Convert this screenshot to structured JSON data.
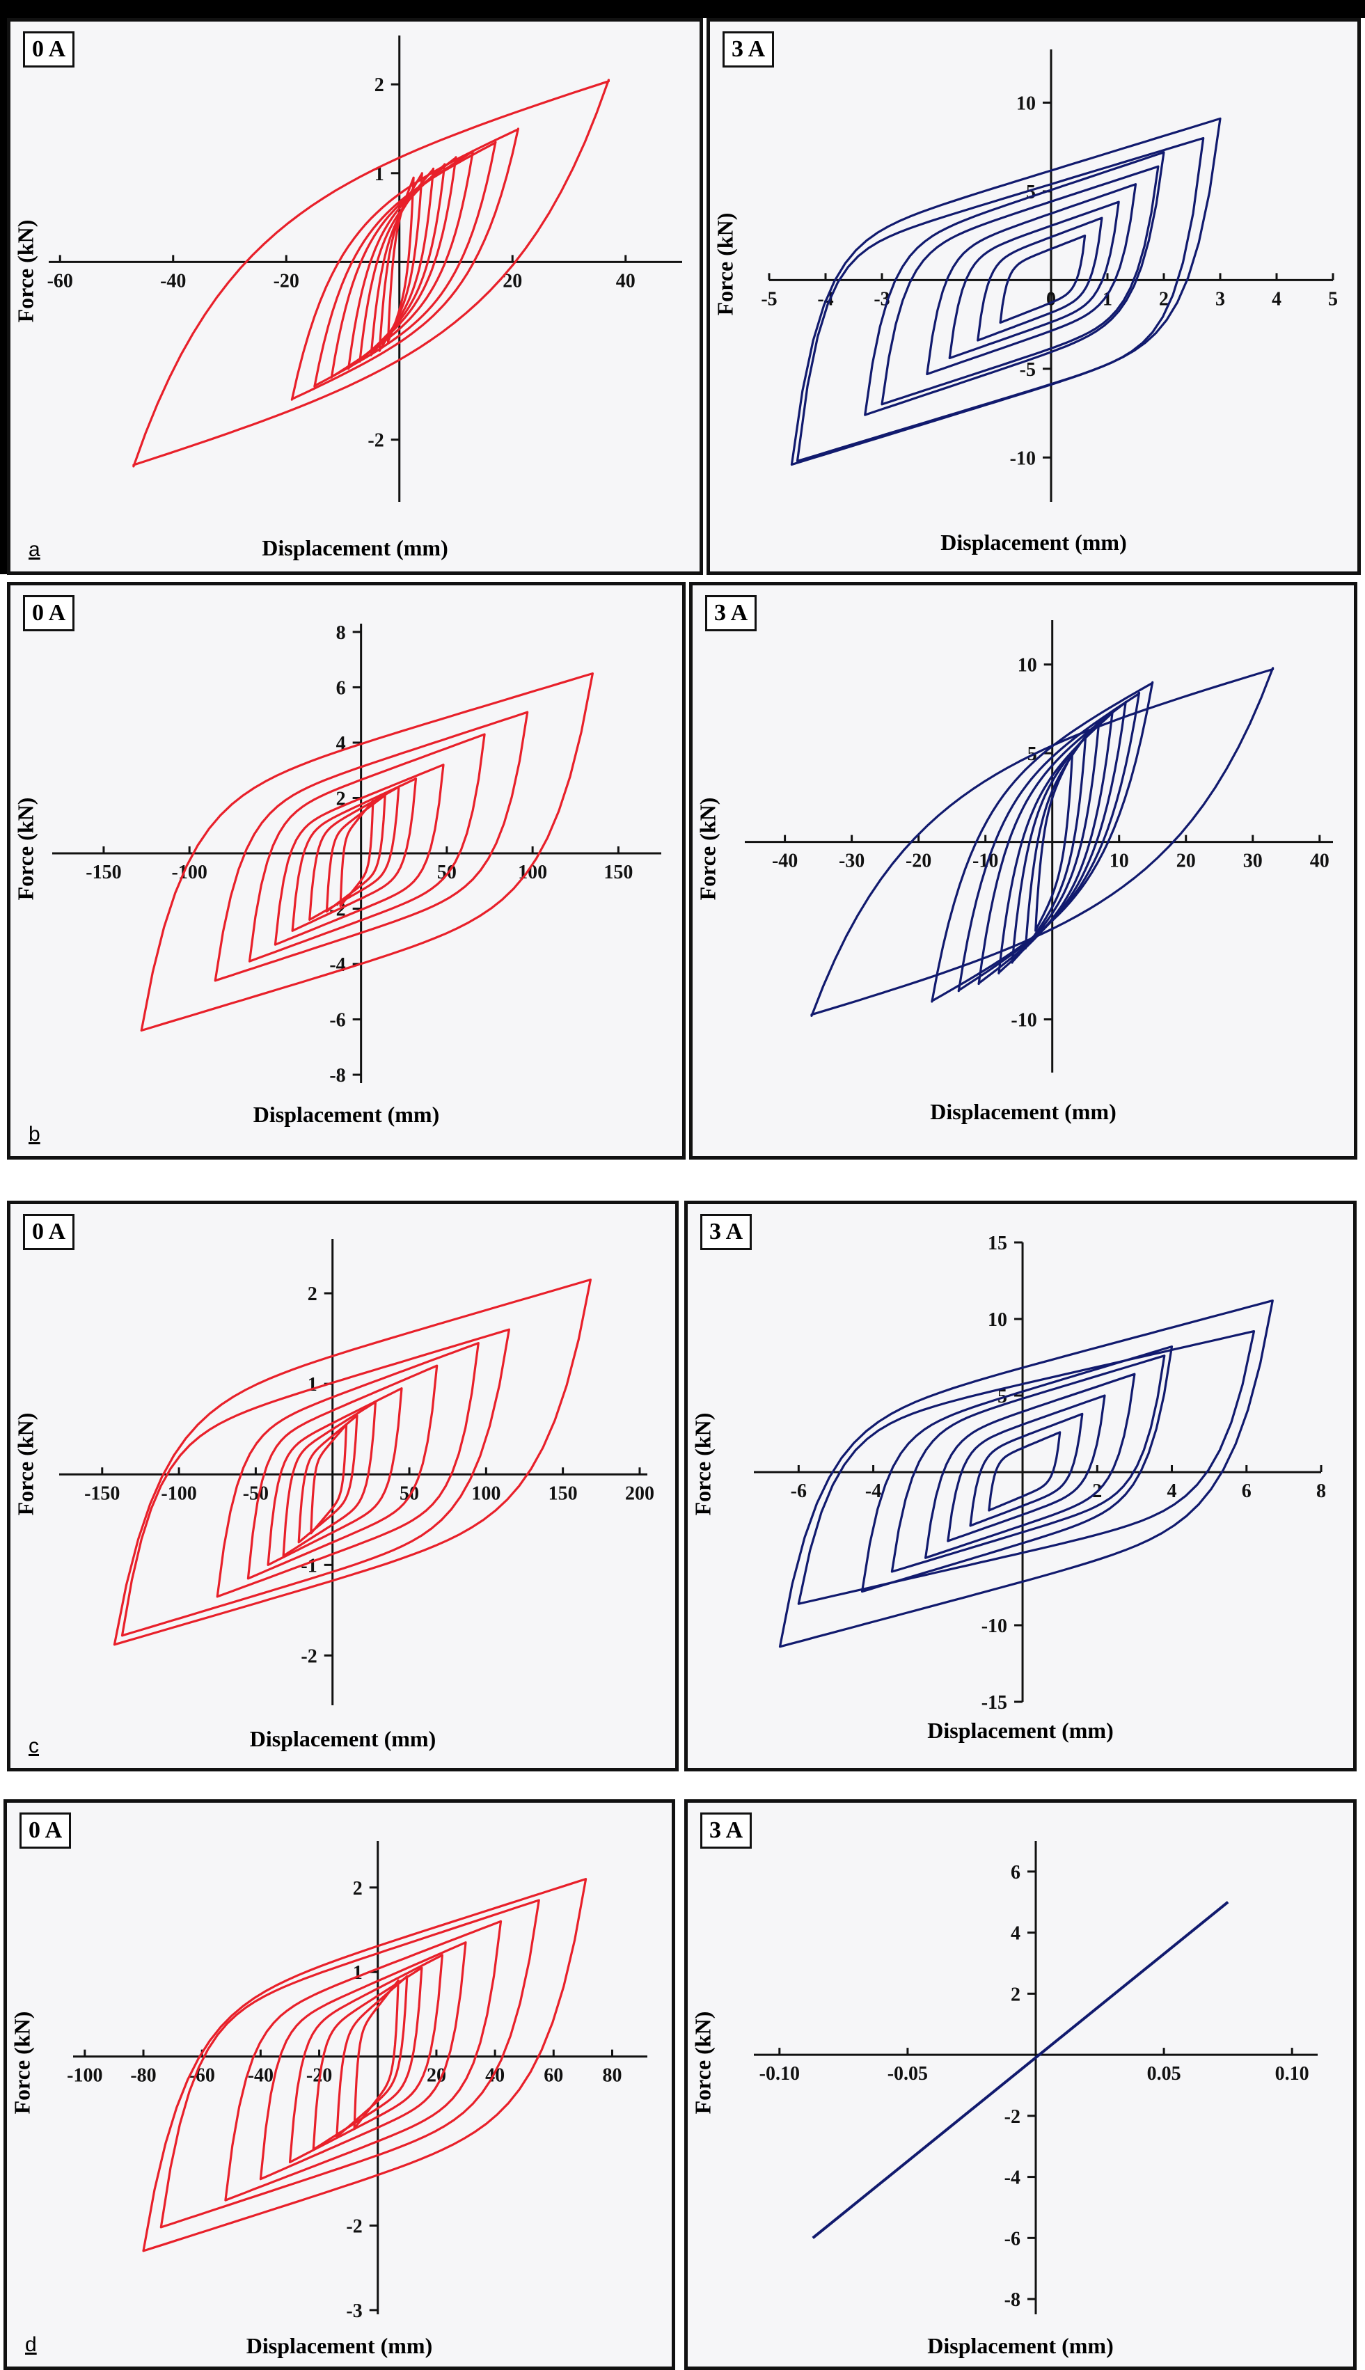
{
  "figure": {
    "rows": [
      {
        "label": "a"
      },
      {
        "label": "b"
      },
      {
        "label": "c"
      },
      {
        "label": "d"
      }
    ]
  },
  "colors": {
    "zeroA": "#e8202a",
    "threeA": "#111a6e",
    "axis": "#111111"
  },
  "chart_data": [
    {
      "id": "a0",
      "type": "line",
      "title": "0 A",
      "xlabel": "Displacement (mm)",
      "ylabel": "Force (kN)",
      "xlim": [
        -62,
        50
      ],
      "ylim": [
        -2.7,
        2.55
      ],
      "xticks": [
        -60,
        -40,
        -20,
        20,
        40
      ],
      "yticks": [
        -2,
        1,
        2
      ],
      "loops": [
        {
          "xmin": -47,
          "xmax": 37,
          "ymin": -2.3,
          "ymax": 2.05,
          "f": 0.55
        },
        {
          "xmin": -19,
          "xmax": 21,
          "ymin": -1.55,
          "ymax": 1.5,
          "f": 0.5
        },
        {
          "xmin": -15,
          "xmax": 17,
          "ymin": -1.4,
          "ymax": 1.35,
          "f": 0.5
        },
        {
          "xmin": -12,
          "xmax": 13,
          "ymin": -1.3,
          "ymax": 1.25,
          "f": 0.5
        },
        {
          "xmin": -9,
          "xmax": 10,
          "ymin": -1.2,
          "ymax": 1.18,
          "f": 0.5
        },
        {
          "xmin": -7,
          "xmax": 8,
          "ymin": -1.12,
          "ymax": 1.1,
          "f": 0.5
        },
        {
          "xmin": -5,
          "xmax": 6,
          "ymin": -1.05,
          "ymax": 1.05,
          "f": 0.5
        },
        {
          "xmin": -3.5,
          "xmax": 4,
          "ymin": -1.0,
          "ymax": 1.0,
          "f": 0.5
        },
        {
          "xmin": -2,
          "xmax": 2.5,
          "ymin": -0.9,
          "ymax": 0.95,
          "f": 0.5
        }
      ]
    },
    {
      "id": "a3",
      "type": "line",
      "title": "3 A",
      "xlabel": "Displacement (mm)",
      "ylabel": "Force (kN)",
      "xlim": [
        -5,
        5
      ],
      "ylim": [
        -12.5,
        13
      ],
      "xticks": [
        -5,
        -4,
        -3,
        0,
        1,
        2,
        3,
        4,
        5
      ],
      "yticks": [
        -10,
        -5,
        5,
        10
      ],
      "loops": [
        {
          "xmin": -4.6,
          "xmax": 3.0,
          "ymin": -10.4,
          "ymax": 9.1,
          "f": 0.18
        },
        {
          "xmin": -4.5,
          "xmax": 2.7,
          "ymin": -10.2,
          "ymax": 8.0,
          "f": 0.16
        },
        {
          "xmin": -3.3,
          "xmax": 2.0,
          "ymin": -7.6,
          "ymax": 7.2,
          "f": 0.2
        },
        {
          "xmin": -3.0,
          "xmax": 1.9,
          "ymin": -7.0,
          "ymax": 6.4,
          "f": 0.2
        },
        {
          "xmin": -2.2,
          "xmax": 1.5,
          "ymin": -5.3,
          "ymax": 5.4,
          "f": 0.2
        },
        {
          "xmin": -1.8,
          "xmax": 1.2,
          "ymin": -4.4,
          "ymax": 4.4,
          "f": 0.2
        },
        {
          "xmin": -1.3,
          "xmax": 0.9,
          "ymin": -3.4,
          "ymax": 3.5,
          "f": 0.2
        },
        {
          "xmin": -0.9,
          "xmax": 0.6,
          "ymin": -2.4,
          "ymax": 2.5,
          "f": 0.2
        }
      ]
    },
    {
      "id": "b0",
      "type": "line",
      "title": "0 A",
      "xlabel": "Displacement (mm)",
      "ylabel": "Force (kN)",
      "xlim": [
        -180,
        175
      ],
      "ylim": [
        -8.3,
        8.3
      ],
      "xticks": [
        -150,
        -100,
        50,
        100,
        150
      ],
      "yticks": [
        -8,
        -6,
        -4,
        -2,
        2,
        4,
        6,
        8
      ],
      "loops": [
        {
          "xmin": -128,
          "xmax": 135,
          "ymin": -6.4,
          "ymax": 6.5,
          "f": 0.25
        },
        {
          "xmin": -85,
          "xmax": 97,
          "ymin": -4.6,
          "ymax": 5.1,
          "f": 0.22
        },
        {
          "xmin": -65,
          "xmax": 72,
          "ymin": -3.9,
          "ymax": 4.3,
          "f": 0.2
        },
        {
          "xmin": -50,
          "xmax": 48,
          "ymin": -3.3,
          "ymax": 3.2,
          "f": 0.18
        },
        {
          "xmin": -40,
          "xmax": 32,
          "ymin": -2.8,
          "ymax": 2.7,
          "f": 0.18
        },
        {
          "xmin": -30,
          "xmax": 22,
          "ymin": -2.4,
          "ymax": 2.4,
          "f": 0.18
        },
        {
          "xmin": -20,
          "xmax": 14,
          "ymin": -2.1,
          "ymax": 2.1,
          "f": 0.18
        },
        {
          "xmin": -12,
          "xmax": 7,
          "ymin": -1.9,
          "ymax": 1.9,
          "f": 0.2
        }
      ]
    },
    {
      "id": "b3",
      "type": "line",
      "title": "3 A",
      "xlabel": "Displacement (mm)",
      "ylabel": "Force (kN)",
      "xlim": [
        -46,
        42
      ],
      "ylim": [
        -13,
        12.5
      ],
      "xticks": [
        -40,
        -30,
        -20,
        -10,
        10,
        20,
        30,
        40
      ],
      "yticks": [
        -10,
        5,
        10
      ],
      "loops": [
        {
          "xmin": -36,
          "xmax": 33,
          "ymin": -9.8,
          "ymax": 9.8,
          "f": 0.55
        },
        {
          "xmin": -18,
          "xmax": 15,
          "ymin": -9.0,
          "ymax": 9.0,
          "f": 0.5
        },
        {
          "xmin": -14,
          "xmax": 13,
          "ymin": -8.4,
          "ymax": 8.4,
          "f": 0.5
        },
        {
          "xmin": -11,
          "xmax": 11,
          "ymin": -8.0,
          "ymax": 7.9,
          "f": 0.5
        },
        {
          "xmin": -8,
          "xmax": 9,
          "ymin": -7.4,
          "ymax": 7.3,
          "f": 0.5
        },
        {
          "xmin": -6,
          "xmax": 7,
          "ymin": -6.8,
          "ymax": 6.8,
          "f": 0.5
        },
        {
          "xmin": -4,
          "xmax": 5,
          "ymin": -6.0,
          "ymax": 6.0,
          "f": 0.5
        },
        {
          "xmin": -2.5,
          "xmax": 3,
          "ymin": -5.0,
          "ymax": 5.0,
          "f": 0.5
        }
      ]
    },
    {
      "id": "c0",
      "type": "line",
      "title": "0 A",
      "xlabel": "Displacement (mm)",
      "ylabel": "Force (kN)",
      "xlim": [
        -178,
        205
      ],
      "ylim": [
        -2.55,
        2.6
      ],
      "xticks": [
        -150,
        -100,
        -50,
        50,
        100,
        150,
        200
      ],
      "yticks": [
        -2,
        -1,
        1,
        2
      ],
      "loops": [
        {
          "xmin": -142,
          "xmax": 168,
          "ymin": -1.88,
          "ymax": 2.15,
          "f": 0.25
        },
        {
          "xmin": -137,
          "xmax": 115,
          "ymin": -1.78,
          "ymax": 1.6,
          "f": 0.22
        },
        {
          "xmin": -75,
          "xmax": 95,
          "ymin": -1.35,
          "ymax": 1.45,
          "f": 0.2
        },
        {
          "xmin": -55,
          "xmax": 68,
          "ymin": -1.15,
          "ymax": 1.2,
          "f": 0.18
        },
        {
          "xmin": -42,
          "xmax": 45,
          "ymin": -1.0,
          "ymax": 0.95,
          "f": 0.18
        },
        {
          "xmin": -32,
          "xmax": 28,
          "ymin": -0.9,
          "ymax": 0.8,
          "f": 0.18
        },
        {
          "xmin": -22,
          "xmax": 16,
          "ymin": -0.75,
          "ymax": 0.65,
          "f": 0.2
        },
        {
          "xmin": -14,
          "xmax": 9,
          "ymin": -0.65,
          "ymax": 0.55,
          "f": 0.2
        }
      ]
    },
    {
      "id": "c3",
      "type": "line",
      "title": "3 A",
      "xlabel": "Displacement (mm)",
      "ylabel": "Force (kN)",
      "xlim": [
        -7.2,
        8
      ],
      "ylim": [
        -15,
        15
      ],
      "xticks": [
        -6,
        -4,
        2,
        4,
        6,
        8
      ],
      "yticks": [
        -15,
        -10,
        5,
        10,
        15
      ],
      "loops": [
        {
          "xmin": -6.5,
          "xmax": 6.7,
          "ymin": -11.4,
          "ymax": 11.2,
          "f": 0.22
        },
        {
          "xmin": -6.0,
          "xmax": 6.2,
          "ymin": -8.6,
          "ymax": 9.2,
          "f": 0.2
        },
        {
          "xmin": -4.3,
          "xmax": 4.0,
          "ymin": -7.8,
          "ymax": 8.2,
          "f": 0.2
        },
        {
          "xmin": -3.5,
          "xmax": 3.8,
          "ymin": -6.5,
          "ymax": 7.6,
          "f": 0.2
        },
        {
          "xmin": -2.6,
          "xmax": 3.0,
          "ymin": -5.6,
          "ymax": 6.4,
          "f": 0.2
        },
        {
          "xmin": -2.0,
          "xmax": 2.2,
          "ymin": -4.5,
          "ymax": 5.0,
          "f": 0.2
        },
        {
          "xmin": -1.4,
          "xmax": 1.6,
          "ymin": -3.5,
          "ymax": 3.8,
          "f": 0.2
        },
        {
          "xmin": -0.9,
          "xmax": 1.0,
          "ymin": -2.5,
          "ymax": 2.6,
          "f": 0.2
        }
      ]
    },
    {
      "id": "d0",
      "type": "line",
      "title": "0 A",
      "xlabel": "Displacement (mm)",
      "ylabel": "Force (kN)",
      "xlim": [
        -104,
        92
      ],
      "ylim": [
        -3.05,
        2.55
      ],
      "xticks": [
        -100,
        -80,
        -60,
        -40,
        -20,
        20,
        40,
        60,
        80
      ],
      "yticks": [
        -3,
        -2,
        1,
        2
      ],
      "loops": [
        {
          "xmin": -80,
          "xmax": 71,
          "ymin": -2.3,
          "ymax": 2.1,
          "f": 0.25
        },
        {
          "xmin": -74,
          "xmax": 55,
          "ymin": -2.02,
          "ymax": 1.85,
          "f": 0.22
        },
        {
          "xmin": -52,
          "xmax": 42,
          "ymin": -1.7,
          "ymax": 1.6,
          "f": 0.2
        },
        {
          "xmin": -40,
          "xmax": 30,
          "ymin": -1.45,
          "ymax": 1.35,
          "f": 0.18
        },
        {
          "xmin": -30,
          "xmax": 22,
          "ymin": -1.25,
          "ymax": 1.2,
          "f": 0.18
        },
        {
          "xmin": -22,
          "xmax": 15,
          "ymin": -1.1,
          "ymax": 1.05,
          "f": 0.18
        },
        {
          "xmin": -14,
          "xmax": 10,
          "ymin": -0.95,
          "ymax": 0.95,
          "f": 0.2
        },
        {
          "xmin": -8,
          "xmax": 7,
          "ymin": -0.85,
          "ymax": 0.9,
          "f": 0.2
        }
      ]
    },
    {
      "id": "d3",
      "type": "line",
      "title": "3 A",
      "xlabel": "Displacement (mm)",
      "ylabel": "Force (kN)",
      "xlim": [
        -0.11,
        0.11
      ],
      "ylim": [
        -8.5,
        7
      ],
      "xticks": [
        -0.1,
        -0.05,
        0.05,
        0.1
      ],
      "xticklabels": [
        "-0.10",
        "-0.05",
        "0.05",
        "0.10"
      ],
      "yticks": [
        -8,
        -6,
        -4,
        -2,
        2,
        4,
        6
      ],
      "lines": [
        {
          "x1": -0.087,
          "y1": -6.0,
          "x2": 0.075,
          "y2": 5.0
        }
      ]
    }
  ]
}
